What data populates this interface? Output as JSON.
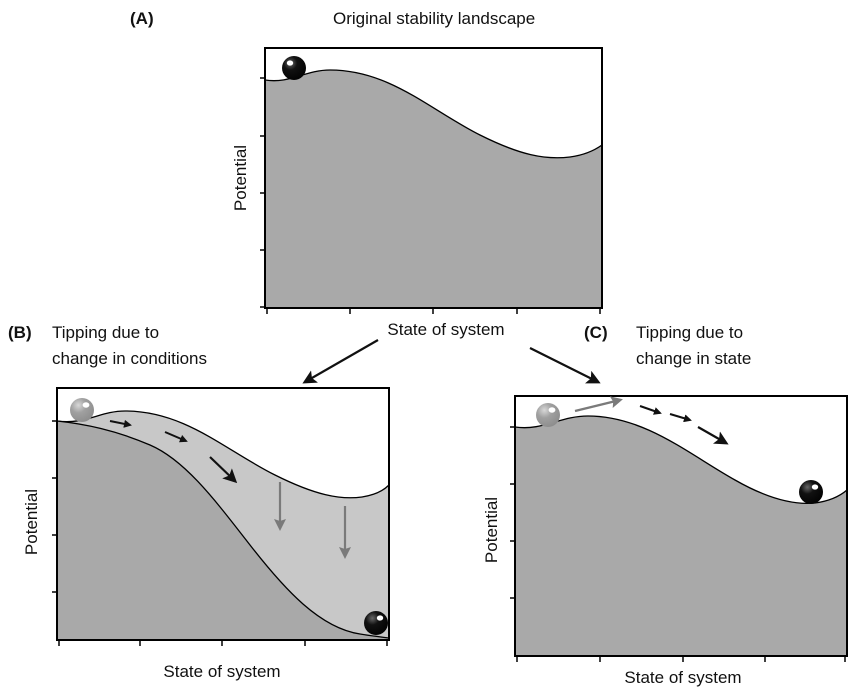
{
  "panels": {
    "a": {
      "tag": "(A)",
      "title": "Original stability landscape",
      "ylabel": "Potential",
      "xlabel": "State of system"
    },
    "b": {
      "tag": "(B)",
      "caption_line1": "Tipping due to",
      "caption_line2": "change in conditions",
      "ylabel": "Potential",
      "xlabel": "State of system"
    },
    "c": {
      "tag": "(C)",
      "caption_line1": "Tipping due to",
      "caption_line2": "change in state",
      "ylabel": "Potential",
      "xlabel": "State of system"
    }
  },
  "colors": {
    "landscape": "#a9a9a9",
    "shifted_region": "#c8c8c8",
    "ghost_ball": "#a0a0a0",
    "ball": "#111111",
    "arrow_dark": "#111111",
    "arrow_grey": "#7a7a7a"
  }
}
